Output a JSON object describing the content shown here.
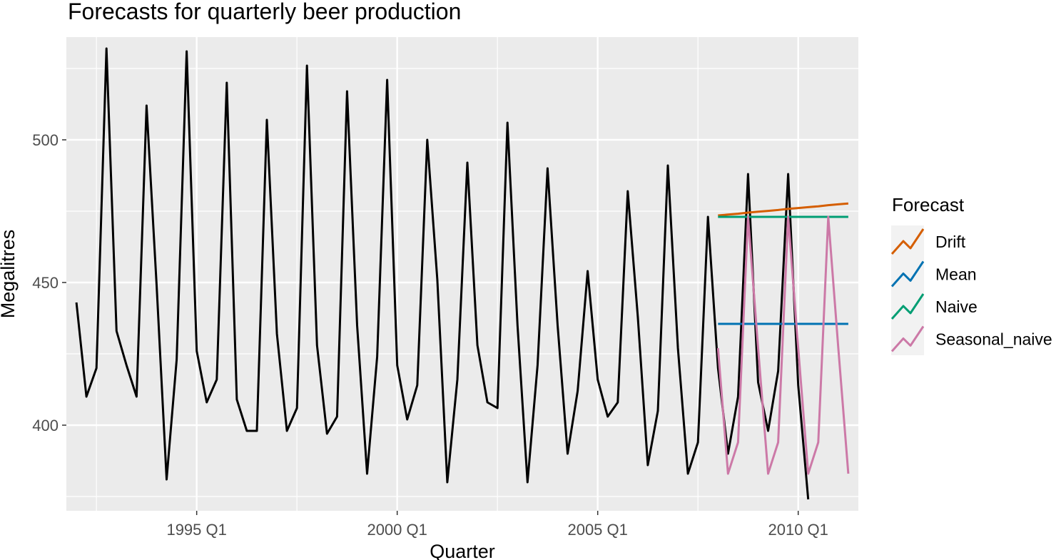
{
  "chart_data": {
    "type": "line",
    "title": "Forecasts for quarterly beer production",
    "xlabel": "Quarter",
    "ylabel": "Megalitres",
    "x_ticks": [
      {
        "label": "1995 Q1",
        "x": 1995.0
      },
      {
        "label": "2000 Q1",
        "x": 2000.0
      },
      {
        "label": "2005 Q1",
        "x": 2005.0
      },
      {
        "label": "2010 Q1",
        "x": 2010.0
      }
    ],
    "y_ticks": [
      400,
      450,
      500
    ],
    "xlim": [
      1991.75,
      2011.5
    ],
    "ylim": [
      370,
      536
    ],
    "grid": true,
    "legend": {
      "title": "Forecast",
      "position": "right",
      "entries": [
        {
          "name": "Drift",
          "color": "#D55E00"
        },
        {
          "name": "Mean",
          "color": "#0072B2"
        },
        {
          "name": "Naive",
          "color": "#009E73"
        },
        {
          "name": "Seasonal_naive",
          "color": "#CC79A7"
        }
      ]
    },
    "actual": {
      "color": "#000000",
      "start": 1992.0,
      "step": 0.25,
      "values": [
        443,
        410,
        420,
        532,
        433,
        421,
        410,
        512,
        449,
        381,
        423,
        531,
        426,
        408,
        416,
        520,
        409,
        398,
        398,
        507,
        432,
        398,
        406,
        526,
        428,
        397,
        403,
        517,
        435,
        383,
        424,
        521,
        421,
        402,
        414,
        500,
        451,
        380,
        416,
        492,
        428,
        408,
        406,
        506,
        435,
        380,
        421,
        490,
        435,
        390,
        412,
        454,
        416,
        403,
        408,
        482,
        438,
        386,
        405,
        491,
        427,
        383,
        394,
        473,
        420,
        390,
        410,
        488,
        415,
        398,
        419,
        488,
        414,
        374
      ]
    },
    "series": [
      {
        "name": "Drift",
        "color": "#D55E00",
        "start": 2008.0,
        "step": 0.25,
        "values": [
          473.5,
          473.8,
          474.1,
          474.5,
          474.8,
          475.1,
          475.4,
          475.8,
          476.1,
          476.4,
          476.7,
          477.1,
          477.4,
          477.7
        ]
      },
      {
        "name": "Mean",
        "color": "#0072B2",
        "start": 2008.0,
        "step": 0.25,
        "values": [
          435.5,
          435.5,
          435.5,
          435.5,
          435.5,
          435.5,
          435.5,
          435.5,
          435.5,
          435.5,
          435.5,
          435.5,
          435.5,
          435.5
        ]
      },
      {
        "name": "Naive",
        "color": "#009E73",
        "start": 2008.0,
        "step": 0.25,
        "values": [
          473,
          473,
          473,
          473,
          473,
          473,
          473,
          473,
          473,
          473,
          473,
          473,
          473,
          473
        ]
      },
      {
        "name": "Seasonal_naive",
        "color": "#CC79A7",
        "start": 2008.0,
        "step": 0.25,
        "values": [
          427,
          383,
          394,
          473,
          427,
          383,
          394,
          473,
          427,
          383,
          394,
          473,
          427,
          383
        ]
      }
    ]
  }
}
